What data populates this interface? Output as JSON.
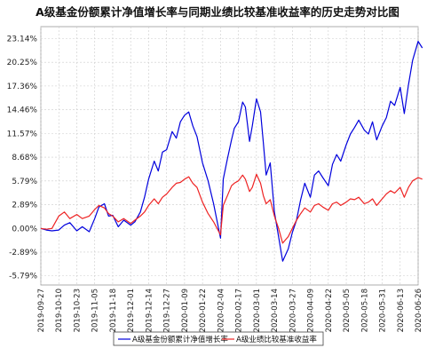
{
  "chart_data": {
    "type": "line",
    "title": "A级基金份额累计净值增长率与同期业绩比较基准收益率的历史走势对比图",
    "y_ticks": [
      "-5.79%",
      "-2.89%",
      "0.00%",
      "2.89%",
      "5.79%",
      "8.68%",
      "11.57%",
      "14.46%",
      "17.36%",
      "20.25%",
      "23.14%"
    ],
    "ylim": [
      -6.9,
      24.6
    ],
    "x_ticks": [
      "2019-09-27",
      "2019-10-10",
      "2019-10-23",
      "2019-11-05",
      "2019-11-18",
      "2019-12-01",
      "2019-12-14",
      "2019-12-27",
      "2020-01-09",
      "2020-01-22",
      "2020-02-04",
      "2020-02-17",
      "2020-03-01",
      "2020-03-14",
      "2020-03-27",
      "2020-04-09",
      "2020-04-22",
      "2020-05-05",
      "2020-05-18",
      "2020-05-31",
      "2020-06-13",
      "2020-06-26"
    ],
    "grid": true,
    "legend_position": "bottom",
    "series": [
      {
        "name": "A级基金份额累计净值增长率",
        "color": "#0000dd",
        "x": [
          "2019-09-27",
          "2019-10-01",
          "2019-10-05",
          "2019-10-10",
          "2019-10-14",
          "2019-10-18",
          "2019-10-23",
          "2019-10-27",
          "2019-11-01",
          "2019-11-05",
          "2019-11-08",
          "2019-11-12",
          "2019-11-15",
          "2019-11-18",
          "2019-11-22",
          "2019-11-26",
          "2019-12-01",
          "2019-12-04",
          "2019-12-08",
          "2019-12-11",
          "2019-12-14",
          "2019-12-18",
          "2019-12-21",
          "2019-12-24",
          "2019-12-27",
          "2019-12-31",
          "2020-01-03",
          "2020-01-06",
          "2020-01-09",
          "2020-01-12",
          "2020-01-15",
          "2020-01-18",
          "2020-01-22",
          "2020-01-26",
          "2020-01-30",
          "2020-02-04",
          "2020-02-06",
          "2020-02-09",
          "2020-02-12",
          "2020-02-14",
          "2020-02-17",
          "2020-02-20",
          "2020-02-22",
          "2020-02-25",
          "2020-02-27",
          "2020-03-01",
          "2020-03-04",
          "2020-03-06",
          "2020-03-08",
          "2020-03-11",
          "2020-03-14",
          "2020-03-17",
          "2020-03-20",
          "2020-03-24",
          "2020-03-27",
          "2020-03-30",
          "2020-04-02",
          "2020-04-05",
          "2020-04-09",
          "2020-04-12",
          "2020-04-15",
          "2020-04-18",
          "2020-04-22",
          "2020-04-25",
          "2020-04-28",
          "2020-05-01",
          "2020-05-05",
          "2020-05-08",
          "2020-05-11",
          "2020-05-14",
          "2020-05-18",
          "2020-05-21",
          "2020-05-24",
          "2020-05-27",
          "2020-05-31",
          "2020-06-03",
          "2020-06-06",
          "2020-06-09",
          "2020-06-13",
          "2020-06-16",
          "2020-06-19",
          "2020-06-22",
          "2020-06-26",
          "2020-06-29"
        ],
        "values": [
          0.0,
          -0.2,
          -0.3,
          -0.2,
          0.4,
          0.7,
          -0.3,
          0.2,
          -0.4,
          1.2,
          2.6,
          3.0,
          1.5,
          1.6,
          0.2,
          1.0,
          0.4,
          0.8,
          2.0,
          3.8,
          6.0,
          8.2,
          7.0,
          9.3,
          9.6,
          11.8,
          11.0,
          13.0,
          13.8,
          14.2,
          12.5,
          11.2,
          8.0,
          5.8,
          3.0,
          -1.2,
          6.0,
          8.5,
          10.8,
          12.2,
          13.0,
          15.4,
          14.8,
          10.6,
          12.5,
          15.8,
          14.2,
          10.5,
          6.5,
          8.0,
          2.0,
          -1.0,
          -4.0,
          -2.5,
          -0.5,
          1.0,
          3.5,
          5.5,
          3.8,
          6.5,
          7.0,
          6.2,
          5.2,
          7.8,
          9.0,
          8.2,
          10.2,
          11.5,
          12.3,
          13.2,
          12.0,
          11.5,
          13.0,
          10.8,
          12.5,
          13.5,
          15.5,
          15.0,
          17.2,
          14.0,
          17.5,
          20.5,
          22.8,
          22.0
        ]
      },
      {
        "name": "A级业绩比较基准收益率",
        "color": "#ee2222",
        "x": [
          "2019-09-27",
          "2019-10-01",
          "2019-10-05",
          "2019-10-10",
          "2019-10-14",
          "2019-10-18",
          "2019-10-23",
          "2019-10-27",
          "2019-11-01",
          "2019-11-05",
          "2019-11-08",
          "2019-11-12",
          "2019-11-15",
          "2019-11-18",
          "2019-11-22",
          "2019-11-26",
          "2019-12-01",
          "2019-12-04",
          "2019-12-08",
          "2019-12-11",
          "2019-12-14",
          "2019-12-18",
          "2019-12-21",
          "2019-12-24",
          "2019-12-27",
          "2019-12-31",
          "2020-01-03",
          "2020-01-06",
          "2020-01-09",
          "2020-01-12",
          "2020-01-15",
          "2020-01-18",
          "2020-01-22",
          "2020-01-26",
          "2020-01-30",
          "2020-02-04",
          "2020-02-06",
          "2020-02-09",
          "2020-02-12",
          "2020-02-14",
          "2020-02-17",
          "2020-02-20",
          "2020-02-22",
          "2020-02-25",
          "2020-02-27",
          "2020-03-01",
          "2020-03-04",
          "2020-03-06",
          "2020-03-08",
          "2020-03-11",
          "2020-03-14",
          "2020-03-17",
          "2020-03-20",
          "2020-03-24",
          "2020-03-27",
          "2020-03-30",
          "2020-04-02",
          "2020-04-05",
          "2020-04-09",
          "2020-04-12",
          "2020-04-15",
          "2020-04-18",
          "2020-04-22",
          "2020-04-25",
          "2020-04-28",
          "2020-05-01",
          "2020-05-05",
          "2020-05-08",
          "2020-05-11",
          "2020-05-14",
          "2020-05-18",
          "2020-05-21",
          "2020-05-24",
          "2020-05-27",
          "2020-05-31",
          "2020-06-03",
          "2020-06-06",
          "2020-06-09",
          "2020-06-13",
          "2020-06-16",
          "2020-06-19",
          "2020-06-22",
          "2020-06-26",
          "2020-06-29"
        ],
        "values": [
          0.0,
          -0.1,
          0.0,
          1.5,
          2.0,
          1.2,
          1.7,
          1.2,
          1.5,
          2.3,
          2.8,
          2.5,
          1.8,
          1.5,
          0.8,
          1.2,
          0.6,
          1.0,
          1.5,
          2.0,
          2.8,
          3.6,
          3.0,
          3.8,
          4.2,
          5.0,
          5.5,
          5.6,
          6.0,
          6.3,
          5.5,
          5.0,
          3.2,
          1.8,
          0.8,
          -0.8,
          2.8,
          4.0,
          5.2,
          5.5,
          5.8,
          6.5,
          6.0,
          4.5,
          5.0,
          6.6,
          5.5,
          4.0,
          3.0,
          3.5,
          1.5,
          0.0,
          -1.8,
          -1.0,
          0.0,
          1.0,
          1.8,
          2.5,
          2.0,
          2.8,
          3.0,
          2.6,
          2.2,
          3.0,
          3.2,
          2.8,
          3.2,
          3.6,
          3.5,
          3.8,
          3.0,
          3.2,
          3.6,
          2.8,
          3.6,
          4.2,
          4.6,
          4.3,
          5.0,
          3.8,
          5.0,
          5.8,
          6.2,
          6.0
        ]
      }
    ]
  }
}
